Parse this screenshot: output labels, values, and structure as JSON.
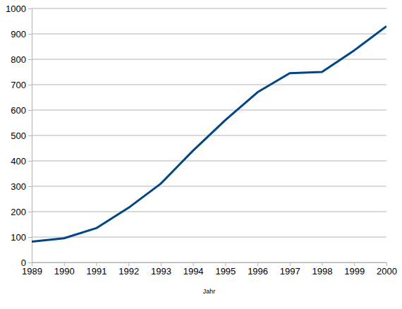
{
  "chart_data": {
    "type": "line",
    "x_label": "Jahr",
    "x": [
      1989,
      1990,
      1991,
      1992,
      1993,
      1994,
      1995,
      1996,
      1997,
      1998,
      1999,
      2000
    ],
    "values": [
      82,
      95,
      135,
      215,
      310,
      440,
      560,
      670,
      745,
      750,
      835,
      930
    ],
    "color": "#004586",
    "xlim": [
      1989,
      2000
    ],
    "xticks": [
      1989,
      1990,
      1991,
      1992,
      1993,
      1994,
      1995,
      1996,
      1997,
      1998,
      1999,
      2000
    ],
    "ylim": [
      0,
      1000
    ],
    "yticks": [
      0,
      100,
      200,
      300,
      400,
      500,
      600,
      700,
      800,
      900,
      1000
    ],
    "grid": true
  }
}
